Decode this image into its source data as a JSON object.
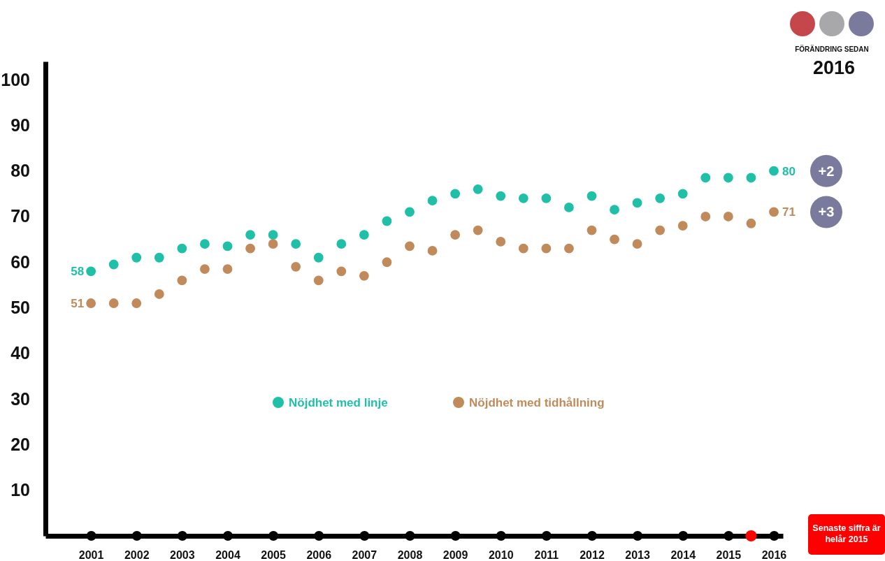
{
  "chart_data": {
    "type": "scatter",
    "x": [
      2001,
      2001.5,
      2002,
      2002.5,
      2003,
      2003.5,
      2004,
      2004.5,
      2005,
      2005.5,
      2006,
      2006.5,
      2007,
      2007.5,
      2008,
      2008.5,
      2009,
      2009.5,
      2010,
      2010.5,
      2011,
      2011.5,
      2012,
      2012.5,
      2013,
      2013.5,
      2014,
      2014.5,
      2015,
      2015.5,
      2016
    ],
    "series": [
      {
        "name": "Nöjdhet med linje",
        "color": "#1fbfa8",
        "values": [
          58,
          59.5,
          61,
          61,
          63,
          64,
          63.5,
          66,
          66,
          64,
          61,
          64,
          66,
          69,
          71,
          73.5,
          75,
          76,
          74.5,
          74,
          74,
          72,
          74.5,
          71.5,
          73,
          74,
          75,
          78.5,
          78.5,
          78.5,
          80
        ],
        "value_labels": [
          "58",
          null,
          null,
          null,
          null,
          null,
          null,
          null,
          null,
          null,
          null,
          null,
          null,
          null,
          null,
          null,
          null,
          null,
          null,
          null,
          null,
          null,
          null,
          null,
          null,
          null,
          null,
          null,
          null,
          null,
          "80"
        ]
      },
      {
        "name": "Nöjdhet med tidhållning",
        "color": "#c08a5b",
        "values": [
          51,
          51,
          51,
          53,
          56,
          58.5,
          58.5,
          63,
          64,
          59,
          56,
          58,
          57,
          60,
          63.5,
          62.5,
          66,
          67,
          64.5,
          63,
          63,
          63,
          67,
          65,
          64,
          67,
          68,
          70,
          70,
          68.5,
          71
        ],
        "value_labels": [
          "51",
          null,
          null,
          null,
          null,
          null,
          null,
          null,
          null,
          null,
          null,
          null,
          null,
          null,
          null,
          null,
          null,
          null,
          null,
          null,
          null,
          null,
          null,
          null,
          null,
          null,
          null,
          null,
          null,
          null,
          "71"
        ]
      }
    ],
    "xlim": [
      2000,
      2016.2
    ],
    "xticks": [
      2001,
      2002,
      2003,
      2004,
      2005,
      2006,
      2007,
      2008,
      2009,
      2010,
      2011,
      2012,
      2013,
      2014,
      2015,
      2016
    ],
    "ylim": [
      0,
      104
    ],
    "yticks": [
      10,
      20,
      30,
      40,
      50,
      60,
      70,
      80,
      90,
      100
    ],
    "marker": "circle",
    "grid": false,
    "legend": "bottom",
    "annotations": [
      "+2",
      "+3",
      "Senaste siffra är helår 2015",
      "FÖRÄNDRING SEDAN",
      "2016"
    ]
  }
}
